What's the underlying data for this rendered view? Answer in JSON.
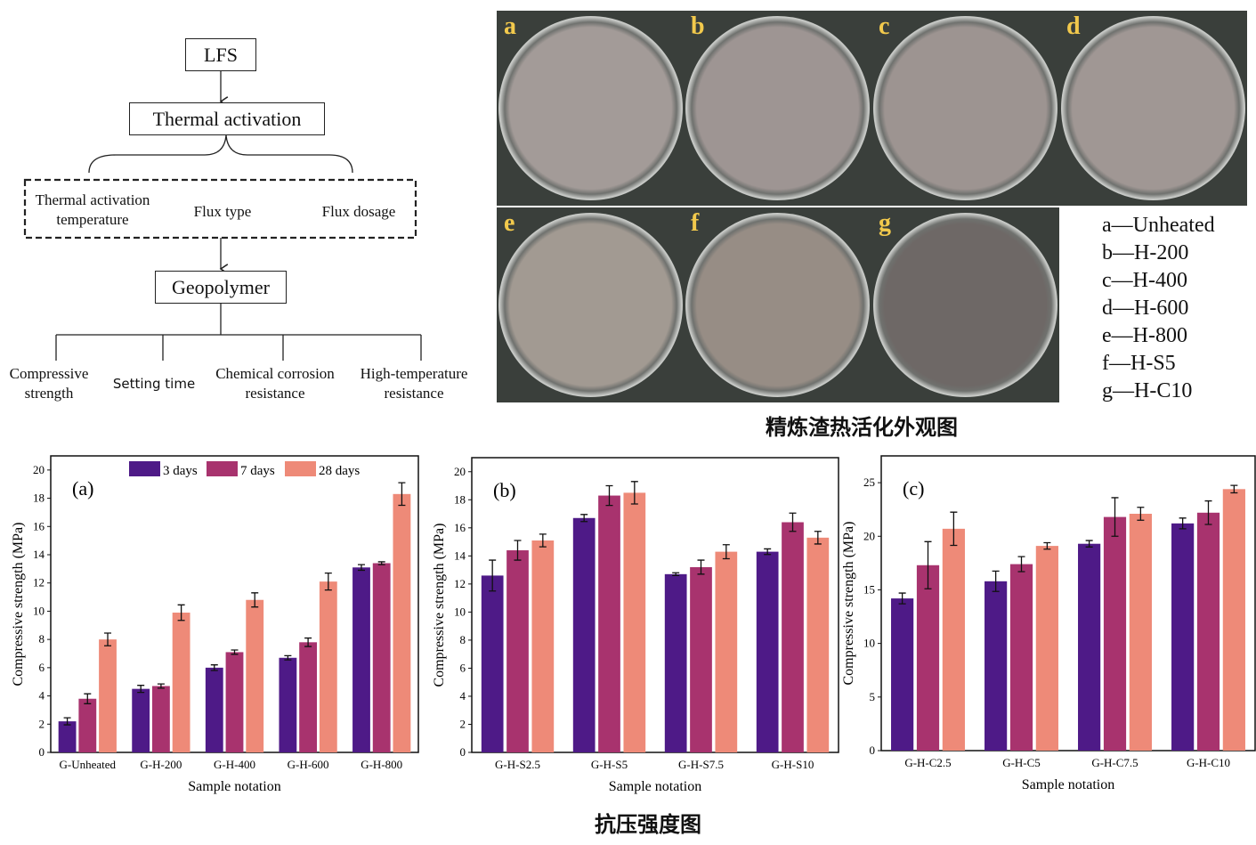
{
  "diagram": {
    "root": "LFS",
    "process": "Thermal activation",
    "factors": [
      "Thermal activation\ntemperature",
      "Flux type",
      "Flux dosage"
    ],
    "product": "Geopolymer",
    "properties": [
      "Compressive\nstrength",
      "Setting time",
      "Chemical corrosion\nresistance",
      "High-temperature\nresistance"
    ]
  },
  "photos": {
    "panels": [
      "a",
      "b",
      "c",
      "d",
      "e",
      "f",
      "g"
    ],
    "legend": [
      "a—Unheated",
      "b—H-200",
      "c—H-400",
      "d—H-600",
      "e—H-800",
      "f—H-S5",
      "g—H-C10"
    ],
    "caption": "精炼渣热活化外观图"
  },
  "charts_caption": "抗压强度图",
  "colors": {
    "3 days": "#4e1a87",
    "7 days": "#a8336e",
    "28 days": "#ee8a78"
  },
  "chart_data": [
    {
      "type": "bar",
      "panel": "(a)",
      "xlabel": "Sample notation",
      "ylabel": "Compressive strength (MPa)",
      "ylim": [
        0,
        21
      ],
      "yticks": [
        0,
        2,
        4,
        6,
        8,
        10,
        12,
        14,
        16,
        18,
        20
      ],
      "legend": "top",
      "grid": false,
      "categories": [
        "G-Unheated",
        "G-H-200",
        "G-H-400",
        "G-H-600",
        "G-H-800"
      ],
      "series": [
        {
          "name": "3 days",
          "values": [
            2.2,
            4.5,
            6.0,
            6.7,
            13.1
          ],
          "errors": [
            0.25,
            0.25,
            0.2,
            0.15,
            0.2
          ]
        },
        {
          "name": "7 days",
          "values": [
            3.8,
            4.7,
            7.1,
            7.8,
            13.4
          ],
          "errors": [
            0.35,
            0.15,
            0.15,
            0.3,
            0.1
          ]
        },
        {
          "name": "28 days",
          "values": [
            8.0,
            9.9,
            10.8,
            12.1,
            18.3
          ],
          "errors": [
            0.45,
            0.55,
            0.5,
            0.6,
            0.8
          ]
        }
      ]
    },
    {
      "type": "bar",
      "panel": "(b)",
      "xlabel": "Sample notation",
      "ylabel": "Compressive strength (MPa)",
      "ylim": [
        0,
        21
      ],
      "yticks": [
        0,
        2,
        4,
        6,
        8,
        10,
        12,
        14,
        16,
        18,
        20
      ],
      "grid": false,
      "categories": [
        "G-H-S2.5",
        "G-H-S5",
        "G-H-S7.5",
        "G-H-S10"
      ],
      "series": [
        {
          "name": "3 days",
          "values": [
            12.6,
            16.7,
            12.7,
            14.3
          ],
          "errors": [
            1.1,
            0.25,
            0.1,
            0.2
          ]
        },
        {
          "name": "7 days",
          "values": [
            14.4,
            18.3,
            13.2,
            16.4
          ],
          "errors": [
            0.7,
            0.7,
            0.5,
            0.65
          ]
        },
        {
          "name": "28 days",
          "values": [
            15.1,
            18.5,
            14.3,
            15.3
          ],
          "errors": [
            0.45,
            0.8,
            0.5,
            0.45
          ]
        }
      ]
    },
    {
      "type": "bar",
      "panel": "(c)",
      "xlabel": "Sample notation",
      "ylabel": "Compressive strength (MPa)",
      "ylim": [
        0,
        27.5
      ],
      "yticks": [
        0,
        5,
        10,
        15,
        20,
        25
      ],
      "grid": false,
      "categories": [
        "G-H-C2.5",
        "G-H-C5",
        "G-H-C7.5",
        "G-H-C10"
      ],
      "series": [
        {
          "name": "3 days",
          "values": [
            14.2,
            15.8,
            19.3,
            21.2
          ],
          "errors": [
            0.5,
            0.95,
            0.3,
            0.5
          ]
        },
        {
          "name": "7 days",
          "values": [
            17.3,
            17.4,
            21.8,
            22.2
          ],
          "errors": [
            2.2,
            0.7,
            1.8,
            1.1
          ]
        },
        {
          "name": "28 days",
          "values": [
            20.7,
            19.1,
            22.1,
            24.4
          ],
          "errors": [
            1.55,
            0.3,
            0.6,
            0.35
          ]
        }
      ]
    }
  ]
}
